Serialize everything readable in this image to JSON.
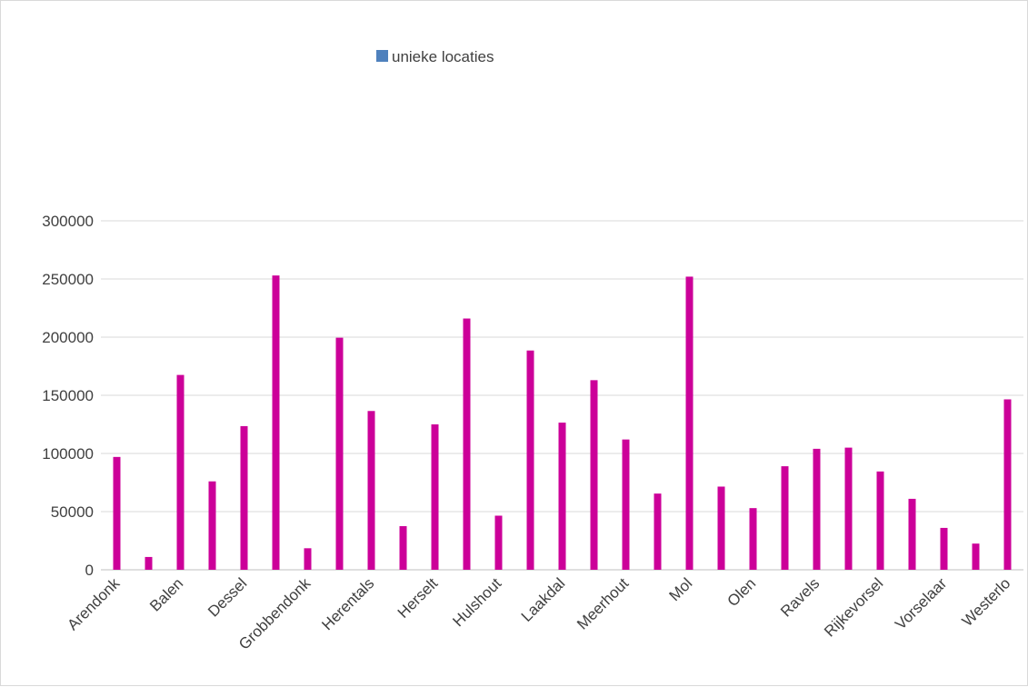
{
  "chart_data": {
    "type": "bar",
    "categories": [
      "Arendonk",
      "",
      "Balen",
      "",
      "Dessel",
      "",
      "Grobbendonk",
      "",
      "Herentals",
      "",
      "Herselt",
      "",
      "Hulshout",
      "",
      "Laakdal",
      "",
      "Meerhout",
      "",
      "Mol",
      "",
      "Olen",
      "",
      "Ravels",
      "",
      "Rijkevorsel",
      "",
      "Vorselaar",
      "",
      "Westerlo"
    ],
    "series": [
      {
        "name": "unieke locaties",
        "color": "#cc0099",
        "values": [
          97000,
          11000,
          167500,
          76000,
          123500,
          253000,
          18500,
          199500,
          136500,
          37500,
          125000,
          216000,
          46500,
          188500,
          126500,
          163000,
          112000,
          65500,
          252000,
          71500,
          53000,
          89000,
          104000,
          105000,
          84500,
          61000,
          36000,
          22500,
          146500
        ]
      }
    ],
    "ylim": [
      0,
      300000
    ],
    "yticks": [
      "0",
      "50000",
      "100000",
      "150000",
      "200000",
      "250000",
      "300000"
    ],
    "grid": true,
    "legend": {
      "position": "top-center",
      "swatch_color": "#4f81bd"
    }
  }
}
